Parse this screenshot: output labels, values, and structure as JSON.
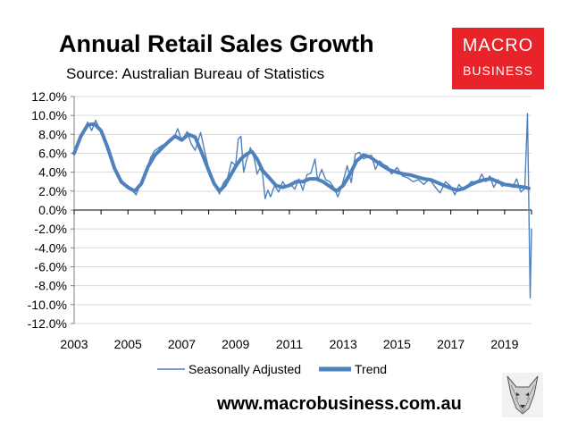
{
  "header": {
    "title": "Annual Retail Sales Growth",
    "subtitle": "Source: Australian Bureau of Statistics"
  },
  "logo": {
    "line1": "MACRO",
    "line2": "BUSINESS",
    "color": "#e8242a"
  },
  "footer": {
    "url": "www.macrobusiness.com.au"
  },
  "colors": {
    "series": "#4f81bd",
    "axis": "#808080",
    "grid": "#d9d9d9"
  },
  "chart_data": {
    "type": "line",
    "title": "Annual Retail Sales Growth",
    "subtitle": "Source: Australian Bureau of Statistics",
    "xlim": [
      2003,
      2020
    ],
    "ylim": [
      -12,
      12
    ],
    "y_ticks": [
      "12.0%",
      "10.0%",
      "8.0%",
      "6.0%",
      "4.0%",
      "2.0%",
      "0.0%",
      "-2.0%",
      "-4.0%",
      "-6.0%",
      "-8.0%",
      "-10.0%",
      "-12.0%"
    ],
    "y_tick_values": [
      12,
      10,
      8,
      6,
      4,
      2,
      0,
      -2,
      -4,
      -6,
      -8,
      -10,
      -12
    ],
    "x_ticks": [
      "2003",
      "2005",
      "2007",
      "2009",
      "2011",
      "2013",
      "2015",
      "2017",
      "2019"
    ],
    "x_tick_values": [
      2003,
      2005,
      2007,
      2009,
      2011,
      2013,
      2015,
      2017,
      2019
    ],
    "grid": "horizontal",
    "legend_position": "bottom",
    "series": [
      {
        "name": "Seasonally Adjusted",
        "style": "thin",
        "x": [
          2003.0,
          2003.25,
          2003.5,
          2003.65,
          2003.8,
          2004.0,
          2004.25,
          2004.5,
          2004.75,
          2005.0,
          2005.15,
          2005.3,
          2005.5,
          2005.7,
          2005.85,
          2006.0,
          2006.25,
          2006.5,
          2006.7,
          2006.85,
          2007.0,
          2007.2,
          2007.35,
          2007.5,
          2007.7,
          2007.85,
          2008.0,
          2008.2,
          2008.4,
          2008.55,
          2008.7,
          2008.85,
          2009.0,
          2009.1,
          2009.2,
          2009.3,
          2009.4,
          2009.55,
          2009.7,
          2009.8,
          2009.9,
          2010.0,
          2010.1,
          2010.2,
          2010.3,
          2010.45,
          2010.6,
          2010.75,
          2010.9,
          2011.05,
          2011.2,
          2011.35,
          2011.5,
          2011.65,
          2011.8,
          2011.95,
          2012.05,
          2012.2,
          2012.35,
          2012.5,
          2012.65,
          2012.8,
          2012.95,
          2013.05,
          2013.15,
          2013.3,
          2013.45,
          2013.6,
          2013.75,
          2013.9,
          2014.05,
          2014.2,
          2014.35,
          2014.5,
          2014.65,
          2014.8,
          2015.0,
          2015.2,
          2015.4,
          2015.6,
          2015.8,
          2016.0,
          2016.2,
          2016.4,
          2016.6,
          2016.8,
          2017.0,
          2017.15,
          2017.3,
          2017.45,
          2017.6,
          2017.75,
          2017.9,
          2018.0,
          2018.15,
          2018.3,
          2018.45,
          2018.6,
          2018.75,
          2018.9,
          2019.0,
          2019.15,
          2019.3,
          2019.45,
          2019.6,
          2019.75,
          2019.85,
          2019.95,
          2020.0
        ],
        "y": [
          5.8,
          7.5,
          9.3,
          8.4,
          9.5,
          8.2,
          6.2,
          4.2,
          2.8,
          2.6,
          2.1,
          1.6,
          3.0,
          4.3,
          5.6,
          6.3,
          6.8,
          7.2,
          7.6,
          8.6,
          7.3,
          8.3,
          7.0,
          6.3,
          8.2,
          6.2,
          4.4,
          3.1,
          1.7,
          2.9,
          3.4,
          5.1,
          4.7,
          7.5,
          7.8,
          4.0,
          5.2,
          6.6,
          5.4,
          3.8,
          4.4,
          3.9,
          1.2,
          2.1,
          1.4,
          2.6,
          1.9,
          3.0,
          2.4,
          2.7,
          2.2,
          3.3,
          2.1,
          3.7,
          3.9,
          5.4,
          3.1,
          4.3,
          3.2,
          3.0,
          2.4,
          1.4,
          2.6,
          3.6,
          4.7,
          2.9,
          5.9,
          6.1,
          5.4,
          5.6,
          5.8,
          4.3,
          5.2,
          4.8,
          4.6,
          3.8,
          4.5,
          3.6,
          3.4,
          3.0,
          3.2,
          2.7,
          3.3,
          2.5,
          1.8,
          3.0,
          2.5,
          1.6,
          2.7,
          2.2,
          2.4,
          3.0,
          3.0,
          2.9,
          3.8,
          3.0,
          3.6,
          2.4,
          3.2,
          2.5,
          2.7,
          2.8,
          2.4,
          3.3,
          1.9,
          2.3,
          10.2,
          -9.3,
          -2.0
        ]
      },
      {
        "name": "Trend",
        "style": "thick",
        "x": [
          2003.0,
          2003.25,
          2003.5,
          2003.75,
          2004.0,
          2004.25,
          2004.5,
          2004.75,
          2005.0,
          2005.25,
          2005.5,
          2005.75,
          2006.0,
          2006.25,
          2006.5,
          2006.75,
          2007.0,
          2007.25,
          2007.5,
          2007.75,
          2008.0,
          2008.2,
          2008.4,
          2008.6,
          2008.8,
          2009.0,
          2009.2,
          2009.4,
          2009.6,
          2009.8,
          2010.0,
          2010.25,
          2010.5,
          2010.75,
          2011.0,
          2011.25,
          2011.5,
          2011.75,
          2012.0,
          2012.25,
          2012.5,
          2012.75,
          2013.0,
          2013.25,
          2013.5,
          2013.75,
          2014.0,
          2014.25,
          2014.5,
          2014.75,
          2015.0,
          2015.25,
          2015.5,
          2015.75,
          2016.0,
          2016.25,
          2016.5,
          2016.75,
          2017.0,
          2017.25,
          2017.5,
          2017.75,
          2018.0,
          2018.25,
          2018.5,
          2018.75,
          2019.0,
          2019.25,
          2019.5,
          2019.75,
          2019.9
        ],
        "y": [
          6.0,
          7.8,
          9.0,
          9.1,
          8.4,
          6.6,
          4.4,
          3.0,
          2.4,
          2.0,
          2.8,
          4.6,
          5.8,
          6.5,
          7.2,
          7.8,
          7.4,
          8.0,
          7.7,
          6.0,
          4.2,
          2.8,
          2.0,
          2.6,
          3.6,
          4.6,
          5.4,
          5.9,
          6.2,
          5.4,
          4.2,
          3.4,
          2.6,
          2.4,
          2.6,
          3.0,
          3.0,
          3.3,
          3.3,
          3.0,
          2.5,
          2.0,
          2.6,
          3.8,
          5.2,
          5.8,
          5.6,
          5.1,
          4.6,
          4.2,
          4.0,
          3.8,
          3.7,
          3.5,
          3.3,
          3.2,
          2.9,
          2.6,
          2.3,
          2.1,
          2.3,
          2.7,
          3.0,
          3.2,
          3.3,
          3.0,
          2.7,
          2.6,
          2.5,
          2.4,
          2.3
        ]
      }
    ]
  }
}
